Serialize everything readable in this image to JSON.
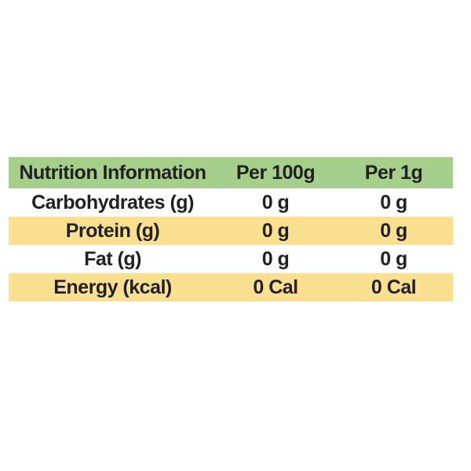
{
  "chart_data": {
    "type": "table",
    "title": "Nutrition Information",
    "columns": [
      "Nutrition Information",
      "Per 100g",
      "Per 1g"
    ],
    "rows": [
      [
        "Carbohydrates (g)",
        "0 g",
        "0 g"
      ],
      [
        "Protein (g)",
        "0 g",
        "0 g"
      ],
      [
        "Fat (g)",
        "0 g",
        "0 g"
      ],
      [
        "Energy (kcal)",
        "0 Cal",
        "0 Cal"
      ]
    ],
    "layout": {
      "header_position": "top",
      "row_striping": "white and yellow alternating, header green",
      "gridlines": "off"
    }
  },
  "colors": {
    "header_bg": "#a6cf8c",
    "row_alt_bg": "#fbe092",
    "row_bg": "#ffffff",
    "text": "#212121",
    "page_bg": "#ffffff"
  }
}
